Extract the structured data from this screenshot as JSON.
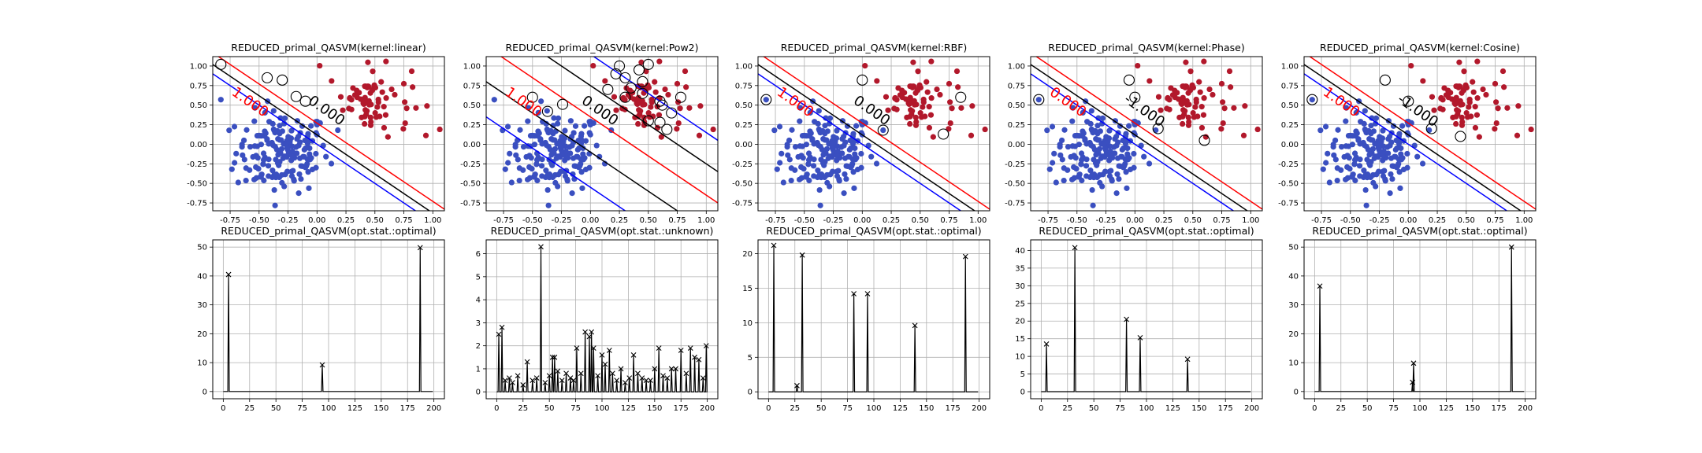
{
  "figure": {
    "colors": {
      "class_pos": "#b2182b",
      "class_neg": "#3a4fc0",
      "margin_pos_line": "#ff0000",
      "margin_neg_line": "#0000ff",
      "decision_line": "#000000",
      "alpha_line": "#000000"
    }
  },
  "chart_data": [
    {
      "type": "scatter",
      "title": "REDUCED_primal_QASVM(kernel:linear)",
      "xlim": [
        -0.9,
        1.1
      ],
      "ylim": [
        -0.85,
        1.12
      ],
      "xticks": [
        "-0.75",
        "-0.50",
        "-0.25",
        "0.00",
        "0.25",
        "0.50",
        "0.75",
        "1.00"
      ],
      "yticks": [
        "-0.75",
        "-0.50",
        "-0.25",
        "0.00",
        "0.25",
        "0.50",
        "0.75",
        "1.00"
      ],
      "grid": true,
      "contour_labels": [
        "0.000",
        "1.000",
        "-1.000"
      ],
      "support_vectors": [
        [
          -0.83,
          1.02
        ],
        [
          -0.43,
          0.85
        ],
        [
          -0.3,
          0.82
        ],
        [
          -0.18,
          0.61
        ],
        [
          -0.1,
          0.55
        ]
      ],
      "boundary_offset": 0.0,
      "boundary_curvature": 0.0
    },
    {
      "type": "scatter",
      "title": "REDUCED_primal_QASVM(kernel:Pow2)",
      "xlim": [
        -0.9,
        1.1
      ],
      "ylim": [
        -0.85,
        1.12
      ],
      "xticks": [
        "-0.75",
        "-0.50",
        "-0.25",
        "0.00",
        "0.25",
        "0.50",
        "0.75",
        "1.00"
      ],
      "yticks": [
        "-0.75",
        "-0.50",
        "-0.25",
        "0.00",
        "0.25",
        "0.50",
        "0.75",
        "1.00"
      ],
      "grid": true,
      "contour_labels": [
        "0.000",
        "1.000",
        "-1.000"
      ],
      "support_vectors": [
        [
          -0.5,
          0.6
        ],
        [
          -0.37,
          0.42
        ],
        [
          -0.24,
          0.51
        ],
        [
          0.35,
          0.72
        ],
        [
          0.45,
          0.65
        ],
        [
          0.6,
          0.55
        ],
        [
          0.62,
          0.5
        ],
        [
          0.7,
          0.4
        ],
        [
          0.5,
          0.3
        ],
        [
          0.6,
          0.28
        ],
        [
          0.66,
          0.19
        ],
        [
          0.45,
          0.8
        ],
        [
          0.3,
          0.85
        ],
        [
          0.22,
          0.9
        ],
        [
          0.25,
          1.0
        ],
        [
          0.5,
          1.02
        ],
        [
          0.42,
          0.95
        ],
        [
          0.78,
          0.6
        ],
        [
          0.3,
          0.6
        ],
        [
          0.15,
          0.7
        ]
      ],
      "boundary_offset": 0.0,
      "boundary_curvature": 0.0
    },
    {
      "type": "scatter",
      "title": "REDUCED_primal_QASVM(kernel:RBF)",
      "xlim": [
        -0.9,
        1.1
      ],
      "ylim": [
        -0.85,
        1.12
      ],
      "xticks": [
        "-0.75",
        "-0.50",
        "-0.25",
        "0.00",
        "0.25",
        "0.50",
        "0.75",
        "1.00"
      ],
      "yticks": [
        "-0.75",
        "-0.50",
        "-0.25",
        "0.00",
        "0.25",
        "0.50",
        "0.75",
        "1.00"
      ],
      "grid": true,
      "contour_labels": [
        "0.000",
        "1.000",
        "-0.000"
      ],
      "support_vectors": [
        [
          -0.83,
          0.57
        ],
        [
          0.0,
          0.82
        ],
        [
          0.18,
          0.18
        ],
        [
          0.7,
          0.13
        ],
        [
          0.85,
          0.6
        ]
      ],
      "boundary_offset": 0.0,
      "boundary_curvature": 0.0
    },
    {
      "type": "scatter",
      "title": "REDUCED_primal_QASVM(kernel:Phase)",
      "xlim": [
        -0.9,
        1.1
      ],
      "ylim": [
        -0.85,
        1.12
      ],
      "xticks": [
        "-0.75",
        "-0.50",
        "-0.25",
        "0.00",
        "0.25",
        "0.50",
        "0.75",
        "1.00"
      ],
      "yticks": [
        "-0.75",
        "-0.50",
        "-0.25",
        "0.00",
        "0.25",
        "0.50",
        "0.75",
        "1.00"
      ],
      "grid": true,
      "contour_labels": [
        "-1.000",
        "0.000",
        "1.000"
      ],
      "support_vectors": [
        [
          -0.83,
          0.57
        ],
        [
          -0.05,
          0.82
        ],
        [
          0.0,
          0.6
        ],
        [
          0.2,
          0.2
        ],
        [
          0.6,
          0.05
        ]
      ],
      "boundary_offset": 0.0,
      "boundary_curvature": 0.0
    },
    {
      "type": "scatter",
      "title": "REDUCED_primal_QASVM(kernel:Cosine)",
      "xlim": [
        -0.9,
        1.1
      ],
      "ylim": [
        -0.85,
        1.12
      ],
      "xticks": [
        "-0.75",
        "-0.50",
        "-0.25",
        "0.00",
        "0.25",
        "0.50",
        "0.75",
        "1.00"
      ],
      "yticks": [
        "-0.75",
        "-0.50",
        "-0.25",
        "0.00",
        "0.25",
        "0.50",
        "0.75",
        "1.00"
      ],
      "grid": true,
      "contour_labels": [
        "-1.000",
        "1.000",
        "0.000"
      ],
      "support_vectors": [
        [
          -0.83,
          0.57
        ],
        [
          -0.2,
          0.82
        ],
        [
          0.0,
          0.55
        ],
        [
          0.2,
          0.2
        ],
        [
          0.45,
          0.1
        ]
      ],
      "boundary_offset": 0.0,
      "boundary_curvature": 0.0
    },
    {
      "type": "line",
      "title": "REDUCED_primal_QASVM(opt.stat.:optimal)",
      "xlim": [
        -10,
        210
      ],
      "ylim": [
        -2.5,
        52.5
      ],
      "xticks": [
        "0",
        "25",
        "50",
        "75",
        "100",
        "125",
        "150",
        "175",
        "200"
      ],
      "yticks": [
        "0",
        "10",
        "20",
        "30",
        "40",
        "50"
      ],
      "grid": true,
      "spikes": [
        [
          5,
          40.5
        ],
        [
          94,
          9.2
        ],
        [
          187,
          49.8
        ]
      ]
    },
    {
      "type": "line",
      "title": "REDUCED_primal_QASVM(opt.stat.:unknown)",
      "xlim": [
        -10,
        210
      ],
      "ylim": [
        -0.3,
        6.6
      ],
      "xticks": [
        "0",
        "25",
        "50",
        "75",
        "100",
        "125",
        "150",
        "175",
        "200"
      ],
      "yticks": [
        "0",
        "1",
        "2",
        "3",
        "4",
        "5",
        "6"
      ],
      "grid": true,
      "spikes": [
        [
          2,
          2.5
        ],
        [
          5,
          2.8
        ],
        [
          8,
          0.5
        ],
        [
          12,
          0.6
        ],
        [
          15,
          0.4
        ],
        [
          20,
          0.7
        ],
        [
          25,
          0.3
        ],
        [
          29,
          1.3
        ],
        [
          34,
          0.5
        ],
        [
          38,
          0.6
        ],
        [
          42,
          6.3
        ],
        [
          46,
          0.4
        ],
        [
          50,
          0.7
        ],
        [
          53,
          1.5
        ],
        [
          55,
          1.5
        ],
        [
          58,
          0.9
        ],
        [
          62,
          0.5
        ],
        [
          66,
          0.8
        ],
        [
          70,
          0.6
        ],
        [
          73,
          0.5
        ],
        [
          76,
          1.9
        ],
        [
          80,
          0.8
        ],
        [
          84,
          2.6
        ],
        [
          88,
          2.4
        ],
        [
          90,
          2.6
        ],
        [
          92,
          1.9
        ],
        [
          96,
          0.7
        ],
        [
          100,
          1.6
        ],
        [
          103,
          1.2
        ],
        [
          107,
          1.8
        ],
        [
          110,
          0.8
        ],
        [
          114,
          0.5
        ],
        [
          118,
          1.0
        ],
        [
          122,
          0.4
        ],
        [
          126,
          0.6
        ],
        [
          130,
          1.6
        ],
        [
          134,
          0.8
        ],
        [
          138,
          0.6
        ],
        [
          142,
          0.5
        ],
        [
          146,
          0.5
        ],
        [
          150,
          1.0
        ],
        [
          154,
          1.9
        ],
        [
          158,
          0.7
        ],
        [
          162,
          0.6
        ],
        [
          166,
          1.0
        ],
        [
          170,
          1.0
        ],
        [
          175,
          1.8
        ],
        [
          180,
          0.8
        ],
        [
          184,
          1.9
        ],
        [
          188,
          1.5
        ],
        [
          192,
          1.4
        ],
        [
          196,
          0.6
        ],
        [
          199,
          2.0
        ]
      ]
    },
    {
      "type": "line",
      "title": "REDUCED_primal_QASVM(opt.stat.:optimal)",
      "xlim": [
        -10,
        210
      ],
      "ylim": [
        -1.0,
        22.0
      ],
      "xticks": [
        "0",
        "25",
        "50",
        "75",
        "100",
        "125",
        "150",
        "175",
        "200"
      ],
      "yticks": [
        "0",
        "5",
        "10",
        "15",
        "20"
      ],
      "grid": true,
      "spikes": [
        [
          5,
          21.2
        ],
        [
          27,
          0.9
        ],
        [
          32,
          19.8
        ],
        [
          81,
          14.2
        ],
        [
          94,
          14.2
        ],
        [
          139,
          9.6
        ],
        [
          187,
          19.6
        ]
      ]
    },
    {
      "type": "line",
      "title": "REDUCED_primal_QASVM(opt.stat.:optimal)",
      "xlim": [
        -10,
        210
      ],
      "ylim": [
        -2.0,
        43.0
      ],
      "xticks": [
        "0",
        "25",
        "50",
        "75",
        "100",
        "125",
        "150",
        "175",
        "200"
      ],
      "yticks": [
        "0",
        "5",
        "10",
        "15",
        "20",
        "25",
        "30",
        "35",
        "40"
      ],
      "grid": true,
      "spikes": [
        [
          5,
          13.5
        ],
        [
          32,
          40.8
        ],
        [
          81,
          20.5
        ],
        [
          94,
          15.3
        ],
        [
          139,
          9.2
        ]
      ]
    },
    {
      "type": "line",
      "title": "REDUCED_primal_QASVM(opt.stat.:optimal)",
      "xlim": [
        -10,
        210
      ],
      "ylim": [
        -2.5,
        52.5
      ],
      "xticks": [
        "0",
        "25",
        "50",
        "75",
        "100",
        "125",
        "150",
        "175",
        "200"
      ],
      "yticks": [
        "0",
        "10",
        "20",
        "30",
        "40",
        "50"
      ],
      "grid": true,
      "spikes": [
        [
          5,
          36.5
        ],
        [
          93,
          3.2
        ],
        [
          94,
          9.8
        ],
        [
          187,
          50.0
        ]
      ]
    }
  ]
}
